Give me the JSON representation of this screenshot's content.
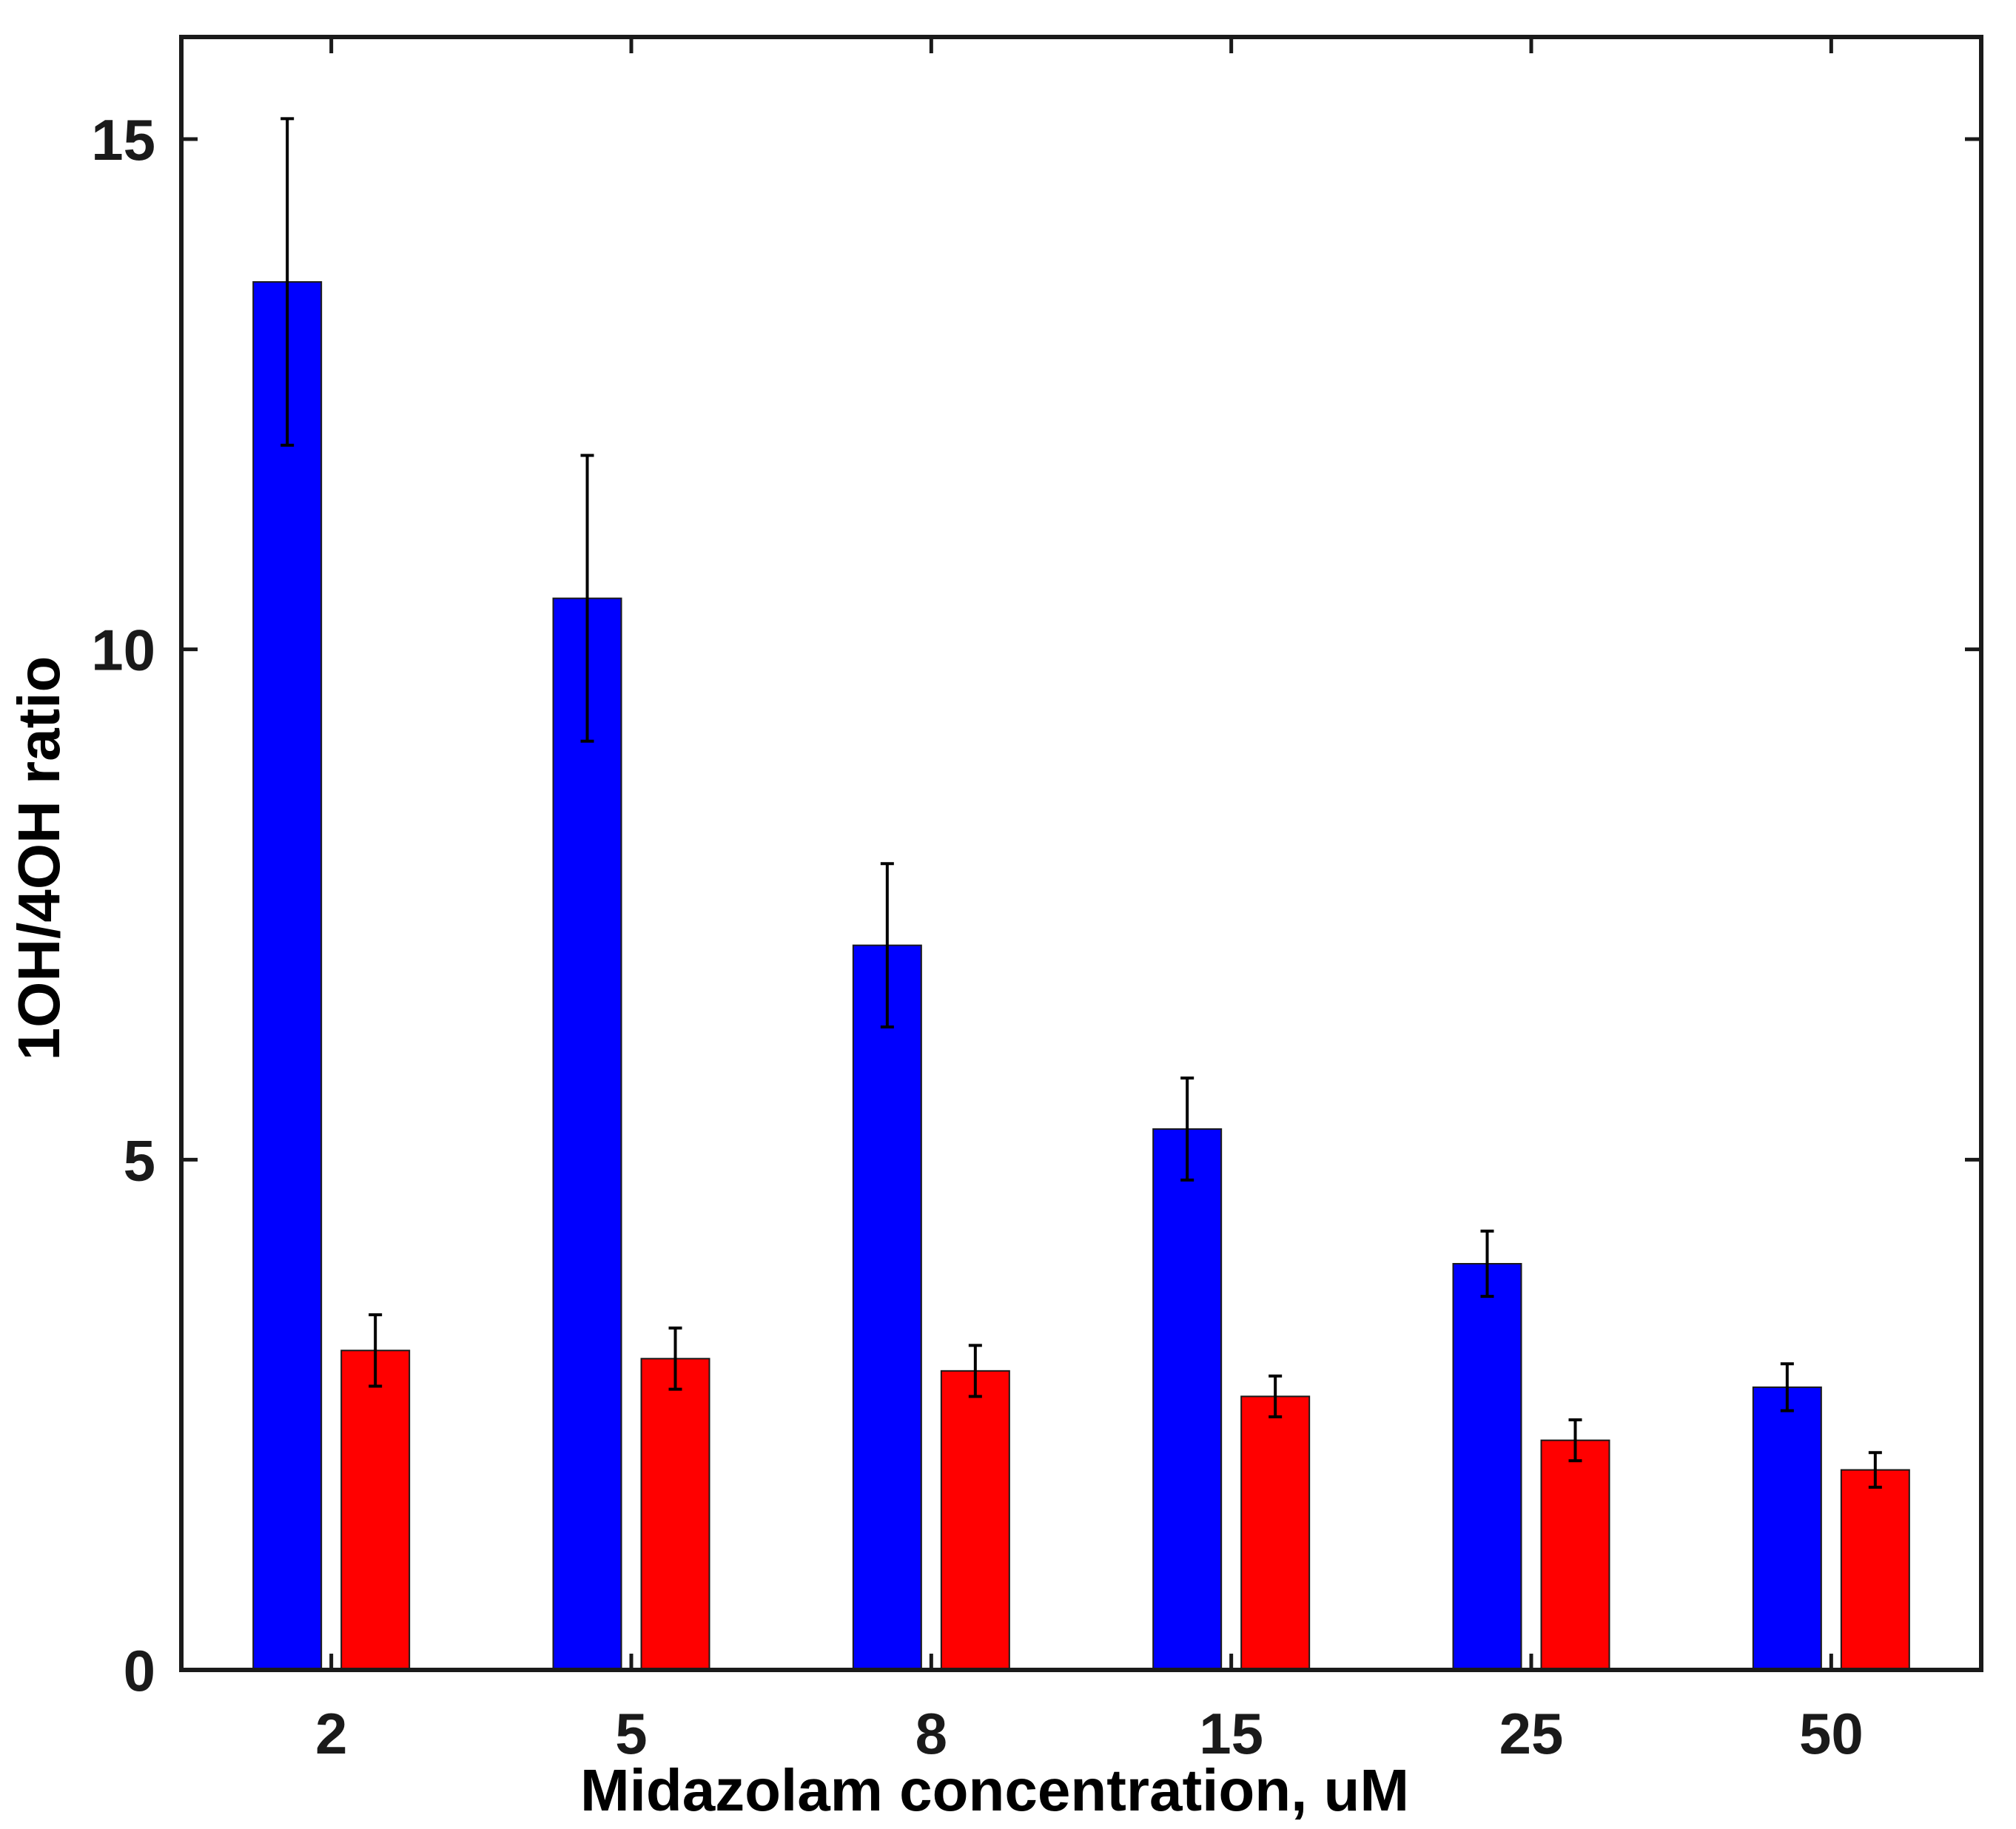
{
  "chart_data": {
    "type": "bar",
    "title": "",
    "xlabel": "Midazolam concentration, uM",
    "ylabel": "1OH/4OH ratio",
    "categories": [
      "2",
      "5",
      "8",
      "15",
      "25",
      "50"
    ],
    "ylim": [
      0,
      16
    ],
    "yticks": [
      0,
      5,
      10,
      15
    ],
    "grid": false,
    "legend": "none",
    "series": [
      {
        "name": "series-blue",
        "color": "#0000ff",
        "values": [
          13.6,
          10.5,
          7.1,
          5.3,
          3.98,
          2.77
        ],
        "errors": [
          1.6,
          1.4,
          0.8,
          0.5,
          0.32,
          0.23
        ]
      },
      {
        "name": "series-red",
        "color": "#ff0000",
        "values": [
          3.13,
          3.05,
          2.93,
          2.68,
          2.25,
          1.96
        ],
        "errors": [
          0.35,
          0.3,
          0.25,
          0.2,
          0.2,
          0.17
        ]
      }
    ]
  }
}
